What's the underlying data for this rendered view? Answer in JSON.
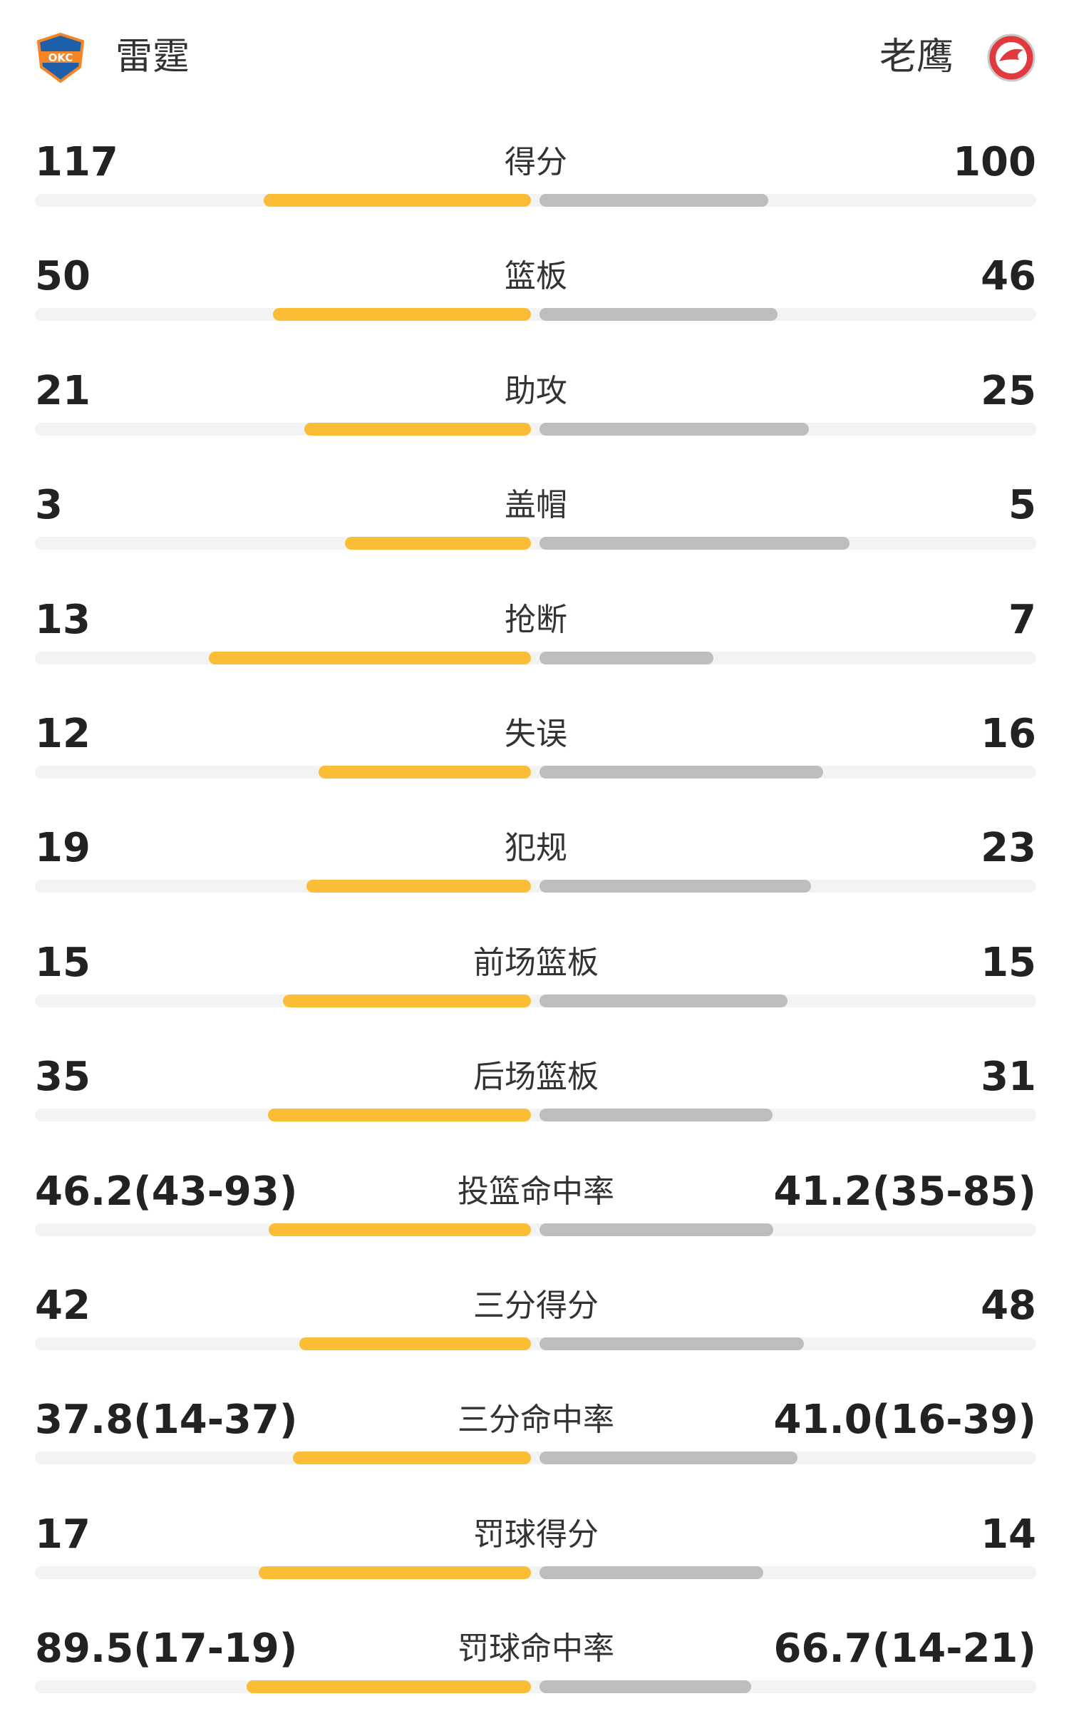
{
  "header": {
    "home": "雷霆",
    "away": "老鹰"
  },
  "rows": [
    {
      "label": "得分",
      "home": 117,
      "away": 100
    },
    {
      "label": "篮板",
      "home": 50,
      "away": 46
    },
    {
      "label": "助攻",
      "home": 21,
      "away": 25
    },
    {
      "label": "盖帽",
      "home": 3,
      "away": 5
    },
    {
      "label": "抢断",
      "home": 13,
      "away": 7
    },
    {
      "label": "失误",
      "home": 12,
      "away": 16
    },
    {
      "label": "犯规",
      "home": 19,
      "away": 23
    },
    {
      "label": "前场篮板",
      "home": 15,
      "away": 15
    },
    {
      "label": "后场篮板",
      "home": 35,
      "away": 31
    },
    {
      "label": "投篮命中率",
      "home": 46.2,
      "away": 41.2,
      "home_label": "46.2(43-93)",
      "away_label": "41.2(35-85)"
    },
    {
      "label": "三分得分",
      "home": 42,
      "away": 48
    },
    {
      "label": "三分命中率",
      "home": 37.8,
      "away": 41.0,
      "home_label": "37.8(14-37)",
      "away_label": "41.0(16-39)"
    },
    {
      "label": "罚球得分",
      "home": 17,
      "away": 14
    },
    {
      "label": "罚球命中率",
      "home": 89.5,
      "away": 66.7,
      "home_label": "89.5(17-19)",
      "away_label": "66.7(14-21)"
    }
  ]
}
